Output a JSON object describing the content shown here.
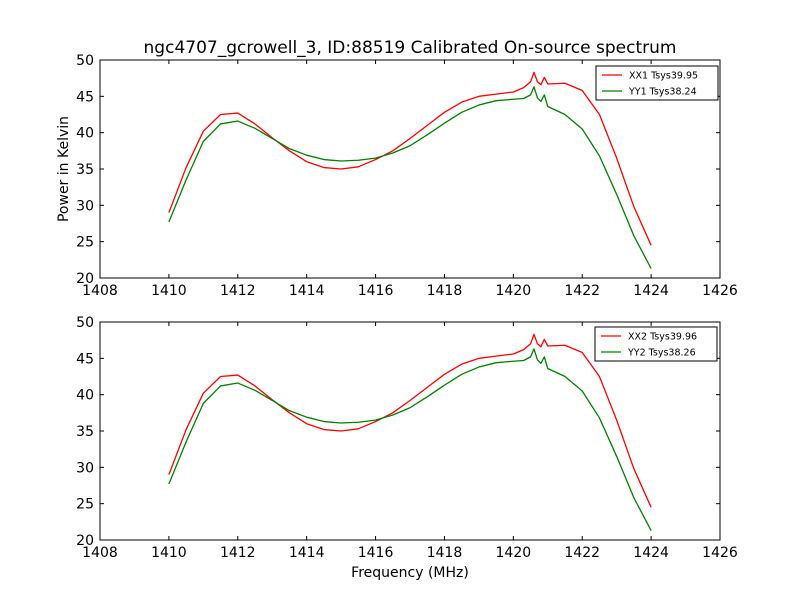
{
  "figure_title": "ngc4707_gcrowell_3, ID:88519 Calibrated On-source spectrum",
  "chart_data": [
    {
      "type": "line",
      "title": "ngc4707_gcrowell_3, ID:88519 Calibrated On-source spectrum",
      "xlabel": "",
      "ylabel": "Power in Kelvin",
      "xlim": [
        1408,
        1426
      ],
      "ylim": [
        20,
        50
      ],
      "xticks": [
        "1408",
        "1410",
        "1412",
        "1414",
        "1416",
        "1418",
        "1420",
        "1422",
        "1424",
        "1426"
      ],
      "yticks": [
        "20",
        "25",
        "30",
        "35",
        "40",
        "45",
        "50"
      ],
      "legend_position": "top-right",
      "grid": false,
      "series": [
        {
          "name": "XX1 Tsys39.95",
          "color": "#ff0000",
          "x": [
            1410.0,
            1410.5,
            1411.0,
            1411.5,
            1412.0,
            1412.5,
            1413.0,
            1413.5,
            1414.0,
            1414.5,
            1415.0,
            1415.5,
            1416.0,
            1416.5,
            1417.0,
            1417.5,
            1418.0,
            1418.5,
            1419.0,
            1419.5,
            1420.0,
            1420.3,
            1420.5,
            1420.6,
            1420.7,
            1420.8,
            1420.9,
            1421.0,
            1421.5,
            1422.0,
            1422.5,
            1423.0,
            1423.5,
            1424.0
          ],
          "values": [
            29.0,
            35.2,
            40.2,
            42.5,
            42.7,
            41.2,
            39.3,
            37.5,
            36.0,
            35.2,
            35.0,
            35.3,
            36.3,
            37.5,
            39.2,
            41.0,
            42.8,
            44.2,
            45.0,
            45.3,
            45.6,
            46.2,
            47.0,
            48.3,
            47.0,
            46.6,
            47.6,
            46.7,
            46.8,
            45.8,
            42.5,
            36.5,
            29.8,
            24.5
          ]
        },
        {
          "name": "YY1 Tsys38.24",
          "color": "#008000",
          "x": [
            1410.0,
            1410.5,
            1411.0,
            1411.5,
            1412.0,
            1412.5,
            1413.0,
            1413.5,
            1414.0,
            1414.5,
            1415.0,
            1415.5,
            1416.0,
            1416.5,
            1417.0,
            1417.5,
            1418.0,
            1418.5,
            1419.0,
            1419.5,
            1420.0,
            1420.3,
            1420.5,
            1420.6,
            1420.7,
            1420.8,
            1420.9,
            1421.0,
            1421.5,
            1422.0,
            1422.5,
            1423.0,
            1423.5,
            1424.0
          ],
          "values": [
            27.7,
            33.5,
            38.8,
            41.2,
            41.6,
            40.6,
            39.2,
            37.8,
            36.9,
            36.3,
            36.1,
            36.2,
            36.5,
            37.2,
            38.2,
            39.7,
            41.3,
            42.8,
            43.8,
            44.4,
            44.6,
            44.7,
            45.2,
            46.3,
            44.8,
            44.3,
            45.2,
            43.6,
            42.5,
            40.5,
            36.8,
            31.5,
            25.8,
            21.3
          ]
        }
      ]
    },
    {
      "type": "line",
      "title": "",
      "xlabel": "Frequency (MHz)",
      "ylabel": "",
      "xlim": [
        1408,
        1426
      ],
      "ylim": [
        20,
        50
      ],
      "xticks": [
        "1408",
        "1410",
        "1412",
        "1414",
        "1416",
        "1418",
        "1420",
        "1422",
        "1424",
        "1426"
      ],
      "yticks": [
        "20",
        "25",
        "30",
        "35",
        "40",
        "45",
        "50"
      ],
      "legend_position": "top-right",
      "grid": false,
      "series": [
        {
          "name": "XX2 Tsys39.96",
          "color": "#ff0000",
          "x": [
            1410.0,
            1410.5,
            1411.0,
            1411.5,
            1412.0,
            1412.5,
            1413.0,
            1413.5,
            1414.0,
            1414.5,
            1415.0,
            1415.5,
            1416.0,
            1416.5,
            1417.0,
            1417.5,
            1418.0,
            1418.5,
            1419.0,
            1419.5,
            1420.0,
            1420.3,
            1420.5,
            1420.6,
            1420.7,
            1420.8,
            1420.9,
            1421.0,
            1421.5,
            1422.0,
            1422.5,
            1423.0,
            1423.5,
            1424.0
          ],
          "values": [
            29.0,
            35.2,
            40.2,
            42.5,
            42.7,
            41.2,
            39.3,
            37.5,
            36.0,
            35.2,
            35.0,
            35.3,
            36.3,
            37.5,
            39.2,
            41.0,
            42.8,
            44.2,
            45.0,
            45.3,
            45.6,
            46.2,
            47.0,
            48.3,
            47.0,
            46.6,
            47.6,
            46.7,
            46.8,
            45.8,
            42.5,
            36.5,
            29.8,
            24.5
          ]
        },
        {
          "name": "YY2 Tsys38.26",
          "color": "#008000",
          "x": [
            1410.0,
            1410.5,
            1411.0,
            1411.5,
            1412.0,
            1412.5,
            1413.0,
            1413.5,
            1414.0,
            1414.5,
            1415.0,
            1415.5,
            1416.0,
            1416.5,
            1417.0,
            1417.5,
            1418.0,
            1418.5,
            1419.0,
            1419.5,
            1420.0,
            1420.3,
            1420.5,
            1420.6,
            1420.7,
            1420.8,
            1420.9,
            1421.0,
            1421.5,
            1422.0,
            1422.5,
            1423.0,
            1423.5,
            1424.0
          ],
          "values": [
            27.7,
            33.5,
            38.8,
            41.2,
            41.6,
            40.6,
            39.2,
            37.8,
            36.9,
            36.3,
            36.1,
            36.2,
            36.5,
            37.2,
            38.2,
            39.7,
            41.3,
            42.8,
            43.8,
            44.4,
            44.6,
            44.7,
            45.2,
            46.3,
            44.8,
            44.3,
            45.2,
            43.6,
            42.5,
            40.5,
            36.8,
            31.5,
            25.8,
            21.3
          ]
        }
      ]
    }
  ]
}
